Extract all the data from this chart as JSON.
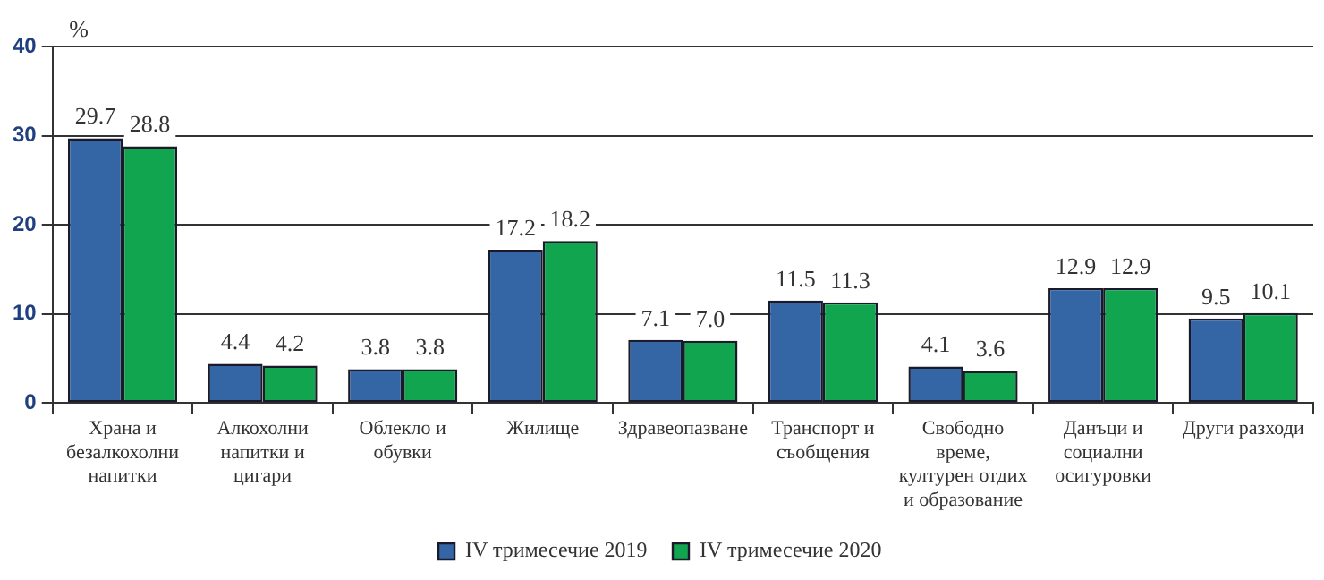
{
  "chart_data": {
    "type": "bar",
    "ylabel": "%",
    "categories": [
      "Храна и безалкохолни напитки",
      "Алкохолни напитки и цигари",
      "Облекло и обувки",
      "Жилище",
      "Здравеопазване",
      "Транспорт и съобщения",
      "Свободно време, културен отдих и образование",
      "Данъци и социални осигуровки",
      "Други разходи"
    ],
    "series": [
      {
        "name": "IV тримесечие 2019",
        "color": "#3465a4",
        "values": [
          29.7,
          4.4,
          3.8,
          17.2,
          7.1,
          11.5,
          4.1,
          12.9,
          9.5
        ],
        "value_labels": [
          "29.7",
          "4.4",
          "3.8",
          "17.2",
          "7.1",
          "11.5",
          "4.1",
          "12.9",
          "9.5"
        ]
      },
      {
        "name": "IV тримесечие 2020",
        "color": "#12a550",
        "values": [
          28.8,
          4.2,
          3.8,
          18.2,
          7.0,
          11.3,
          3.6,
          12.9,
          10.1
        ],
        "value_labels": [
          "28.8",
          "4.2",
          "3.8",
          "18.2",
          "7.0",
          "11.3",
          "3.6",
          "12.9",
          "10.1"
        ]
      }
    ],
    "ylim": [
      0,
      40
    ],
    "yticks": [
      0,
      10,
      20,
      30,
      40
    ],
    "grid": "y",
    "legend": "bottom"
  }
}
